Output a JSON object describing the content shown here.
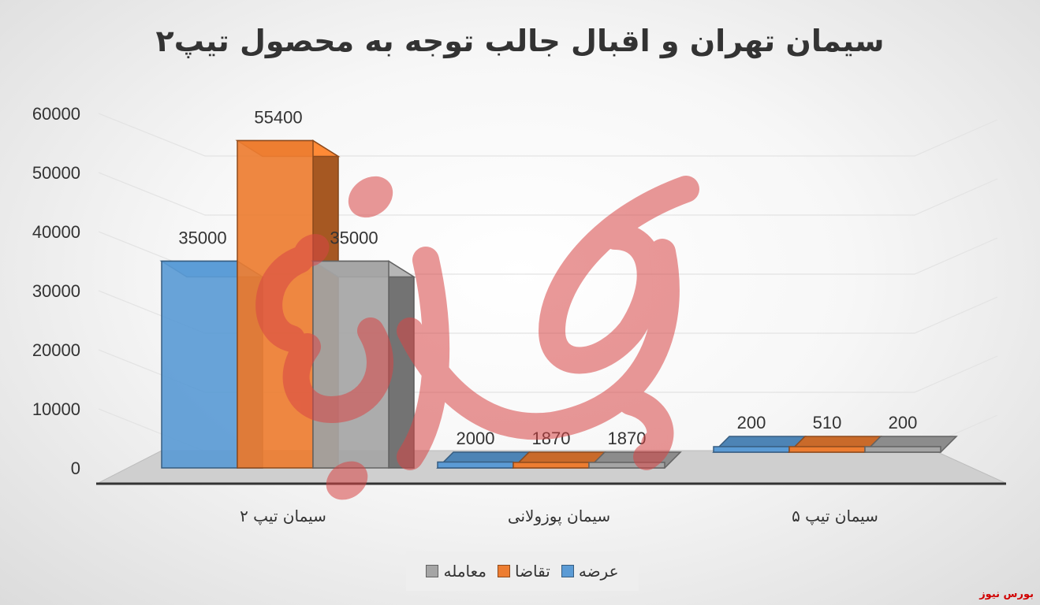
{
  "chart_data": {
    "type": "bar",
    "title": "سیمان تهران و اقبال جالب توجه به محصول تیپ۲",
    "categories": [
      "سیمان تیپ ۲",
      "سیمان پوزولانی",
      "سیمان تیپ ۵"
    ],
    "series": [
      {
        "name": "عرضه",
        "values": [
          35000,
          2000,
          200
        ],
        "color": "#5b9bd5"
      },
      {
        "name": "تقاضا",
        "values": [
          55400,
          1870,
          510
        ],
        "color": "#ed7d31"
      },
      {
        "name": "معامله",
        "values": [
          35000,
          1870,
          200
        ],
        "color": "#a5a5a5"
      }
    ],
    "y_ticks": [
      "0",
      "10000",
      "20000",
      "30000",
      "40000",
      "50000",
      "60000"
    ],
    "ylim": [
      0,
      60000
    ],
    "grid": true,
    "legend_position": "bottom",
    "three_d": true
  },
  "watermark": {
    "text": "بورس نیوز",
    "corner_text": "بورس نیوز",
    "color": "#d00000"
  }
}
